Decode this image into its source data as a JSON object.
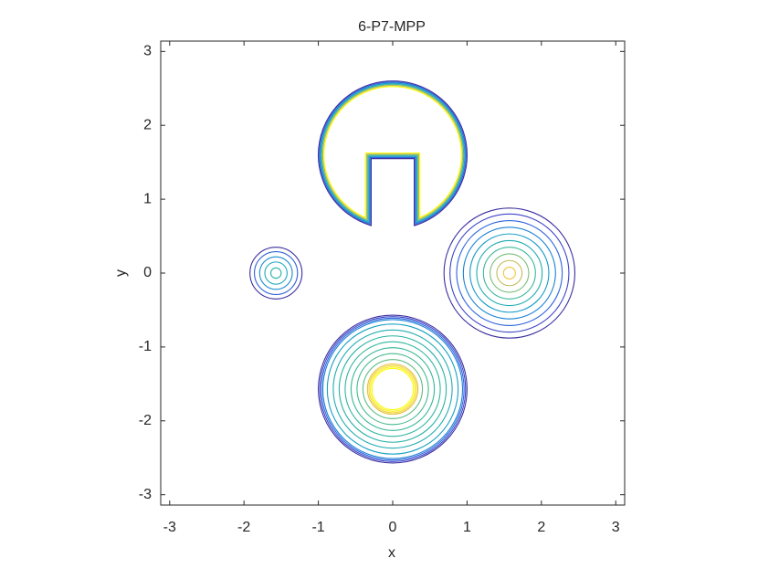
{
  "chart_data": {
    "type": "contour",
    "title": "6-P7-MPP",
    "x_label": "x",
    "y_label": "y",
    "xlim": [
      -3.12,
      3.12
    ],
    "ylim": [
      -3.14,
      3.14
    ],
    "xticks": [
      -3,
      -2,
      -1,
      0,
      1,
      2,
      3
    ],
    "yticks": [
      -3,
      -2,
      -1,
      0,
      1,
      2,
      3
    ],
    "slotted_disks": [
      {
        "x": 0,
        "y": 1.6,
        "r": 1.0,
        "slot_half_width": 0.29,
        "slot_top": 1.55,
        "color": "#3b2fa0"
      },
      {
        "x": 0,
        "y": 1.6,
        "r": 0.985,
        "slot_half_width": 0.305,
        "slot_top": 1.565,
        "color": "#2e64de"
      },
      {
        "x": 0,
        "y": 1.6,
        "r": 0.97,
        "slot_half_width": 0.32,
        "slot_top": 1.58,
        "color": "#139bc8"
      },
      {
        "x": 0,
        "y": 1.6,
        "r": 0.955,
        "slot_half_width": 0.335,
        "slot_top": 1.595,
        "color": "#3ab89a"
      },
      {
        "x": 0,
        "y": 1.6,
        "r": 0.94,
        "slot_half_width": 0.35,
        "slot_top": 1.61,
        "color": "#c1bd5a"
      },
      {
        "x": 0,
        "y": 1.6,
        "r": 0.925,
        "slot_half_width": 0.365,
        "slot_top": 1.625,
        "color": "#f9fb0e"
      }
    ],
    "circles": [
      {
        "x": -1.57,
        "y": 0,
        "r": 0.35,
        "color": "#3b2fa0"
      },
      {
        "x": -1.57,
        "y": 0,
        "r": 0.29,
        "color": "#2f5fd8"
      },
      {
        "x": -1.57,
        "y": 0,
        "r": 0.22,
        "color": "#1a8bd0"
      },
      {
        "x": -1.57,
        "y": 0,
        "r": 0.15,
        "color": "#1ea9bd"
      },
      {
        "x": -1.57,
        "y": 0,
        "r": 0.07,
        "color": "#26b5a8"
      },
      {
        "x": 1.57,
        "y": 0,
        "r": 0.88,
        "color": "#3b2fa0"
      },
      {
        "x": 1.57,
        "y": 0,
        "r": 0.8,
        "color": "#3c45c8"
      },
      {
        "x": 1.57,
        "y": 0,
        "r": 0.71,
        "color": "#2e64de"
      },
      {
        "x": 1.57,
        "y": 0,
        "r": 0.62,
        "color": "#1a82d5"
      },
      {
        "x": 1.57,
        "y": 0,
        "r": 0.53,
        "color": "#139bc8"
      },
      {
        "x": 1.57,
        "y": 0,
        "r": 0.44,
        "color": "#22acb3"
      },
      {
        "x": 1.57,
        "y": 0,
        "r": 0.35,
        "color": "#3ab89a"
      },
      {
        "x": 1.57,
        "y": 0,
        "r": 0.26,
        "color": "#7bbf78"
      },
      {
        "x": 1.57,
        "y": 0,
        "r": 0.17,
        "color": "#c1bd5a"
      },
      {
        "x": 1.57,
        "y": 0,
        "r": 0.08,
        "color": "#f0c43a"
      },
      {
        "x": 0,
        "y": -1.57,
        "r": 1.0,
        "color": "#3b2fa0"
      },
      {
        "x": 0,
        "y": -1.57,
        "r": 0.98,
        "color": "#3c45c8"
      },
      {
        "x": 0,
        "y": -1.57,
        "r": 0.96,
        "color": "#2e64de"
      },
      {
        "x": 0,
        "y": -1.57,
        "r": 0.94,
        "color": "#1a82d5"
      },
      {
        "x": 0,
        "y": -1.57,
        "r": 0.88,
        "color": "#16a0c2"
      },
      {
        "x": 0,
        "y": -1.57,
        "r": 0.8,
        "color": "#22acb3"
      },
      {
        "x": 0,
        "y": -1.57,
        "r": 0.72,
        "color": "#28b3a6"
      },
      {
        "x": 0,
        "y": -1.57,
        "r": 0.64,
        "color": "#2fb69e"
      },
      {
        "x": 0,
        "y": -1.57,
        "r": 0.56,
        "color": "#37b898"
      },
      {
        "x": 0,
        "y": -1.57,
        "r": 0.48,
        "color": "#45ba8f"
      },
      {
        "x": 0,
        "y": -1.57,
        "r": 0.4,
        "color": "#60bd83"
      },
      {
        "x": 0,
        "y": -1.57,
        "r": 0.34,
        "color": "#e5c040"
      },
      {
        "x": 0,
        "y": -1.57,
        "r": 0.32,
        "color": "#f5d530"
      },
      {
        "x": 0,
        "y": -1.57,
        "r": 0.3,
        "color": "#f9f010"
      },
      {
        "x": 0,
        "y": -1.57,
        "r": 0.28,
        "color": "#f9fb0e"
      }
    ]
  }
}
